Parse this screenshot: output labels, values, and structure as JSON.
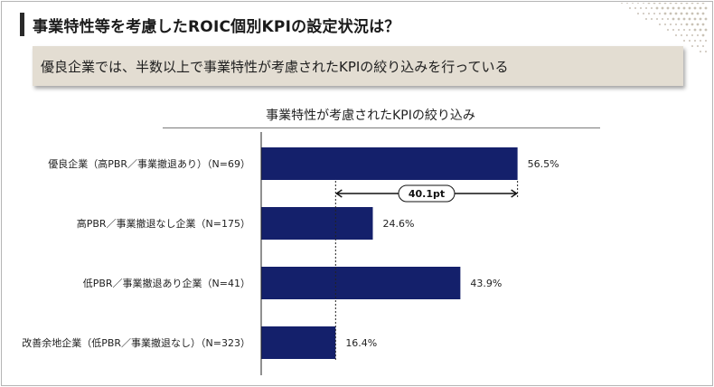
{
  "page": {
    "title": "事業特性等を考慮したROIC個別KPIの設定状況は？",
    "banner": "優良企業では、半数以上で事業特性が考慮されたKPIの絞り込みを行っている"
  },
  "colors": {
    "bar": "#14206b",
    "banner_bg": "#e3ddd2",
    "text": "#222222"
  },
  "chart_data": {
    "type": "bar",
    "orientation": "horizontal",
    "title": "事業特性が考慮されたKPIの絞り込み",
    "categories": [
      "優良企業（高PBR／事業撤退あり）（N=69）",
      "高PBR／事業撤退なし企業（N=175）",
      "低PBR／事業撤退あり企業（N=41）",
      "改善余地企業（低PBR／事業撤退なし）（N=323）"
    ],
    "values": [
      56.5,
      24.6,
      43.9,
      16.4
    ],
    "value_labels": [
      "56.5%",
      "24.6%",
      "43.9%",
      "16.4%"
    ],
    "xlim": [
      0,
      100
    ],
    "annotation": {
      "label": "40.1pt",
      "from_value": 16.4,
      "to_value": 56.5
    }
  }
}
